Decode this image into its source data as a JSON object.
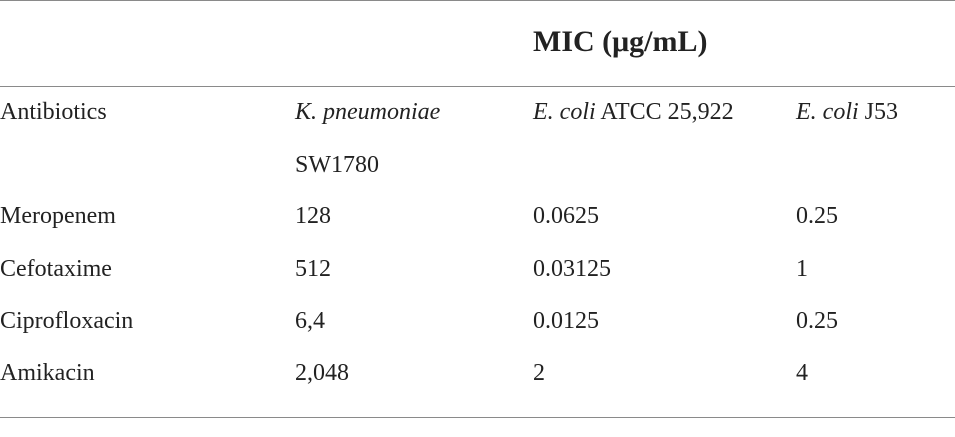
{
  "table": {
    "group_header": "MIC (μg/mL)",
    "columns": [
      {
        "label": "Antibiotics"
      },
      {
        "italic": "K. pneumoniae",
        "rest": "",
        "line2": "SW1780"
      },
      {
        "italic": "E. coli",
        "rest": " ATCC 25,922"
      },
      {
        "italic": "E. coli",
        "rest": " J53"
      }
    ],
    "rows": [
      {
        "antibiotic": "Meropenem",
        "kp": "128",
        "ec_atcc": "0.0625",
        "ec_j53": "0.25"
      },
      {
        "antibiotic": "Cefotaxime",
        "kp": "512",
        "ec_atcc": "0.03125",
        "ec_j53": "1"
      },
      {
        "antibiotic": "Ciprofloxacin",
        "kp": "6,4",
        "ec_atcc": "0.0125",
        "ec_j53": "0.25"
      },
      {
        "antibiotic": "Amikacin",
        "kp": "2,048",
        "ec_atcc": "2",
        "ec_j53": "4"
      }
    ]
  }
}
